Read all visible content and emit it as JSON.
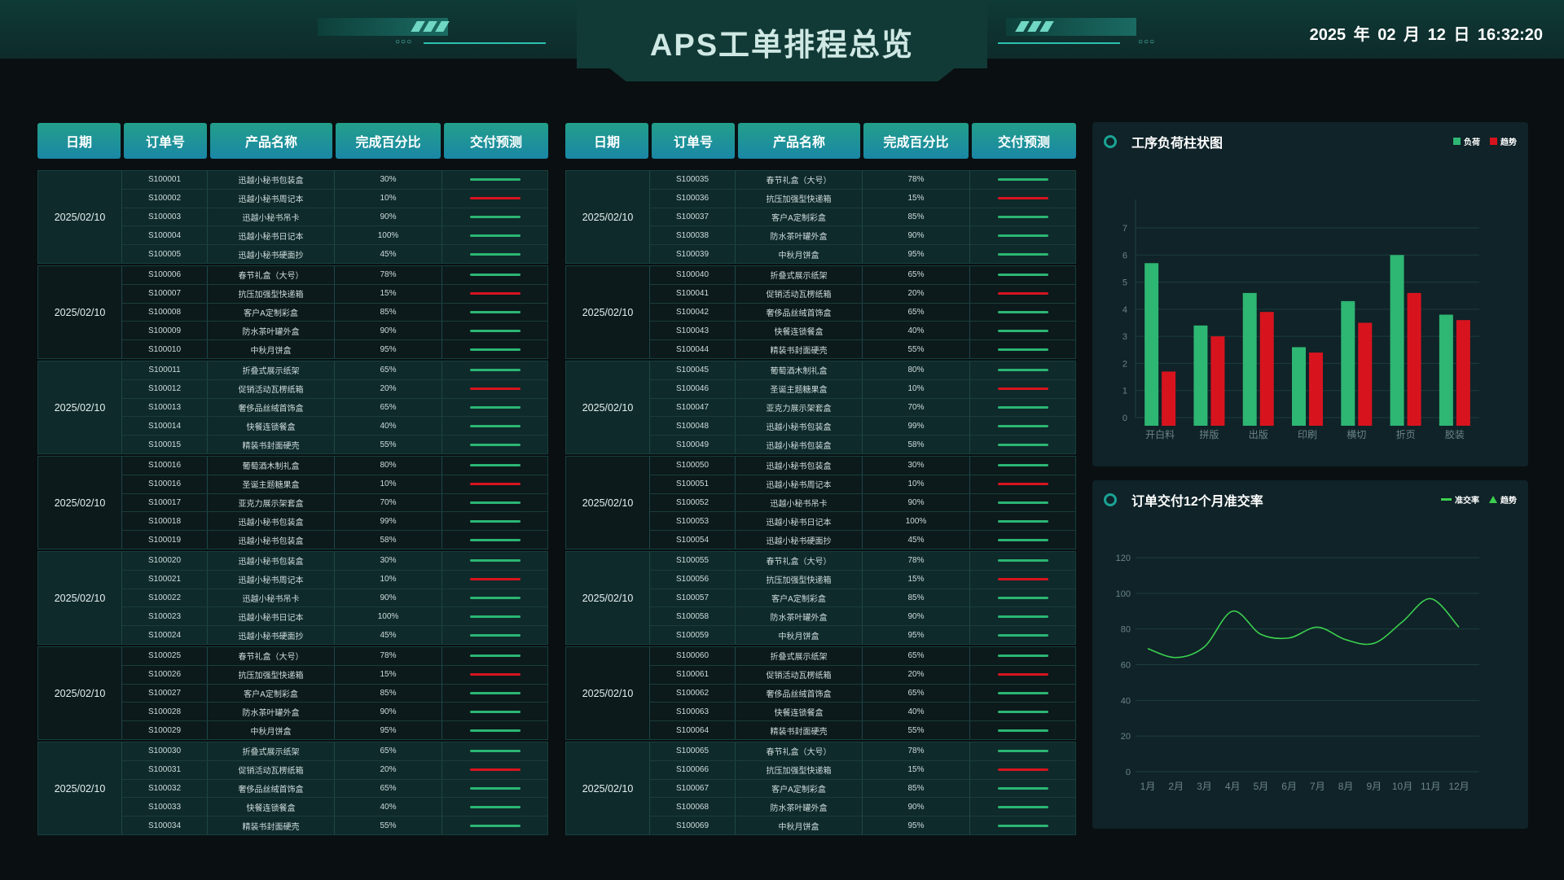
{
  "header": {
    "title": "APS工单排程总览",
    "datetime": "2025 年 02 月 12 日   16:32:20",
    "dots": "○○○"
  },
  "table_headers": [
    "日期",
    "订单号",
    "产品名称",
    "完成百分比",
    "交付预测"
  ],
  "colors": {
    "on_track": "#2bb673",
    "at_risk": "#d7141e",
    "accent": "#1aa394"
  },
  "left_table": [
    {
      "date": "2025/02/10",
      "rows": [
        [
          "S100001",
          "迅越小秘书包装盒",
          "30%",
          "on_track"
        ],
        [
          "S100002",
          "迅越小秘书周记本",
          "10%",
          "at_risk"
        ],
        [
          "S100003",
          "迅越小秘书吊卡",
          "90%",
          "on_track"
        ],
        [
          "S100004",
          "迅越小秘书日记本",
          "100%",
          "on_track"
        ],
        [
          "S100005",
          "迅越小秘书硬面抄",
          "45%",
          "on_track"
        ]
      ]
    },
    {
      "date": "2025/02/10",
      "rows": [
        [
          "S100006",
          "春节礼盒（大号）",
          "78%",
          "on_track"
        ],
        [
          "S100007",
          "抗压加强型快递箱",
          "15%",
          "at_risk"
        ],
        [
          "S100008",
          "客户A定制彩盒",
          "85%",
          "on_track"
        ],
        [
          "S100009",
          "防水茶叶罐外盒",
          "90%",
          "on_track"
        ],
        [
          "S100010",
          "中秋月饼盒",
          "95%",
          "on_track"
        ]
      ]
    },
    {
      "date": "2025/02/10",
      "rows": [
        [
          "S100011",
          "折叠式展示纸架",
          "65%",
          "on_track"
        ],
        [
          "S100012",
          "促销活动瓦楞纸箱",
          "20%",
          "at_risk"
        ],
        [
          "S100013",
          "奢侈品丝绒首饰盒",
          "65%",
          "on_track"
        ],
        [
          "S100014",
          "快餐连锁餐盒",
          "40%",
          "on_track"
        ],
        [
          "S100015",
          "精装书封面硬壳",
          "55%",
          "on_track"
        ]
      ]
    },
    {
      "date": "2025/02/10",
      "rows": [
        [
          "S100016",
          "葡萄酒木制礼盒",
          "80%",
          "on_track"
        ],
        [
          "S100016",
          "圣诞主题糖果盒",
          "10%",
          "at_risk"
        ],
        [
          "S100017",
          "亚克力展示架套盒",
          "70%",
          "on_track"
        ],
        [
          "S100018",
          "迅越小秘书包装盒",
          "99%",
          "on_track"
        ],
        [
          "S100019",
          "迅越小秘书包装盒",
          "58%",
          "on_track"
        ]
      ]
    },
    {
      "date": "2025/02/10",
      "rows": [
        [
          "S100020",
          "迅越小秘书包装盒",
          "30%",
          "on_track"
        ],
        [
          "S100021",
          "迅越小秘书周记本",
          "10%",
          "at_risk"
        ],
        [
          "S100022",
          "迅越小秘书吊卡",
          "90%",
          "on_track"
        ],
        [
          "S100023",
          "迅越小秘书日记本",
          "100%",
          "on_track"
        ],
        [
          "S100024",
          "迅越小秘书硬面抄",
          "45%",
          "on_track"
        ]
      ]
    },
    {
      "date": "2025/02/10",
      "rows": [
        [
          "S100025",
          "春节礼盒（大号）",
          "78%",
          "on_track"
        ],
        [
          "S100026",
          "抗压加强型快递箱",
          "15%",
          "at_risk"
        ],
        [
          "S100027",
          "客户A定制彩盒",
          "85%",
          "on_track"
        ],
        [
          "S100028",
          "防水茶叶罐外盒",
          "90%",
          "on_track"
        ],
        [
          "S100029",
          "中秋月饼盒",
          "95%",
          "on_track"
        ]
      ]
    },
    {
      "date": "2025/02/10",
      "rows": [
        [
          "S100030",
          "折叠式展示纸架",
          "65%",
          "on_track"
        ],
        [
          "S100031",
          "促销活动瓦楞纸箱",
          "20%",
          "at_risk"
        ],
        [
          "S100032",
          "奢侈品丝绒首饰盒",
          "65%",
          "on_track"
        ],
        [
          "S100033",
          "快餐连锁餐盒",
          "40%",
          "on_track"
        ],
        [
          "S100034",
          "精装书封面硬壳",
          "55%",
          "on_track"
        ]
      ]
    }
  ],
  "right_table": [
    {
      "date": "2025/02/10",
      "rows": [
        [
          "S100035",
          "春节礼盒（大号）",
          "78%",
          "on_track"
        ],
        [
          "S100036",
          "抗压加强型快递箱",
          "15%",
          "at_risk"
        ],
        [
          "S100037",
          "客户A定制彩盒",
          "85%",
          "on_track"
        ],
        [
          "S100038",
          "防水茶叶罐外盒",
          "90%",
          "on_track"
        ],
        [
          "S100039",
          "中秋月饼盒",
          "95%",
          "on_track"
        ]
      ]
    },
    {
      "date": "2025/02/10",
      "rows": [
        [
          "S100040",
          "折叠式展示纸架",
          "65%",
          "on_track"
        ],
        [
          "S100041",
          "促销活动瓦楞纸箱",
          "20%",
          "at_risk"
        ],
        [
          "S100042",
          "奢侈品丝绒首饰盒",
          "65%",
          "on_track"
        ],
        [
          "S100043",
          "快餐连锁餐盒",
          "40%",
          "on_track"
        ],
        [
          "S100044",
          "精装书封面硬壳",
          "55%",
          "on_track"
        ]
      ]
    },
    {
      "date": "2025/02/10",
      "rows": [
        [
          "S100045",
          "葡萄酒木制礼盒",
          "80%",
          "on_track"
        ],
        [
          "S100046",
          "圣诞主题糖果盒",
          "10%",
          "at_risk"
        ],
        [
          "S100047",
          "亚克力展示架套盒",
          "70%",
          "on_track"
        ],
        [
          "S100048",
          "迅越小秘书包装盒",
          "99%",
          "on_track"
        ],
        [
          "S100049",
          "迅越小秘书包装盒",
          "58%",
          "on_track"
        ]
      ]
    },
    {
      "date": "2025/02/10",
      "rows": [
        [
          "S100050",
          "迅越小秘书包装盒",
          "30%",
          "on_track"
        ],
        [
          "S100051",
          "迅越小秘书周记本",
          "10%",
          "at_risk"
        ],
        [
          "S100052",
          "迅越小秘书吊卡",
          "90%",
          "on_track"
        ],
        [
          "S100053",
          "迅越小秘书日记本",
          "100%",
          "on_track"
        ],
        [
          "S100054",
          "迅越小秘书硬面抄",
          "45%",
          "on_track"
        ]
      ]
    },
    {
      "date": "2025/02/10",
      "rows": [
        [
          "S100055",
          "春节礼盒（大号）",
          "78%",
          "on_track"
        ],
        [
          "S100056",
          "抗压加强型快递箱",
          "15%",
          "at_risk"
        ],
        [
          "S100057",
          "客户A定制彩盒",
          "85%",
          "on_track"
        ],
        [
          "S100058",
          "防水茶叶罐外盒",
          "90%",
          "on_track"
        ],
        [
          "S100059",
          "中秋月饼盒",
          "95%",
          "on_track"
        ]
      ]
    },
    {
      "date": "2025/02/10",
      "rows": [
        [
          "S100060",
          "折叠式展示纸架",
          "65%",
          "on_track"
        ],
        [
          "S100061",
          "促销活动瓦楞纸箱",
          "20%",
          "at_risk"
        ],
        [
          "S100062",
          "奢侈品丝绒首饰盒",
          "65%",
          "on_track"
        ],
        [
          "S100063",
          "快餐连锁餐盒",
          "40%",
          "on_track"
        ],
        [
          "S100064",
          "精装书封面硬壳",
          "55%",
          "on_track"
        ]
      ]
    },
    {
      "date": "2025/02/10",
      "rows": [
        [
          "S100065",
          "春节礼盒（大号）",
          "78%",
          "on_track"
        ],
        [
          "S100066",
          "抗压加强型快递箱",
          "15%",
          "at_risk"
        ],
        [
          "S100067",
          "客户A定制彩盒",
          "85%",
          "on_track"
        ],
        [
          "S100068",
          "防水茶叶罐外盒",
          "90%",
          "on_track"
        ],
        [
          "S100069",
          "中秋月饼盒",
          "95%",
          "on_track"
        ]
      ]
    }
  ],
  "chart_data": [
    {
      "type": "bar",
      "title": "工序负荷柱状图",
      "categories": [
        "开白料",
        "拼版",
        "出版",
        "印刷",
        "横切",
        "折页",
        "胶装"
      ],
      "series": [
        {
          "name": "负荷",
          "color": "#2eb673",
          "values": [
            5.7,
            3.4,
            4.6,
            2.6,
            4.3,
            6.0,
            3.8
          ]
        },
        {
          "name": "趋势",
          "color": "#d7141e",
          "values": [
            1.7,
            3.0,
            3.9,
            2.4,
            3.5,
            4.6,
            3.6
          ]
        }
      ],
      "ylim": [
        0,
        7
      ],
      "yticks": [
        0,
        1,
        2,
        3,
        4,
        5,
        6,
        7
      ],
      "grid": true,
      "legend": "top-right"
    },
    {
      "type": "line",
      "title": "订单交付12个月准交率",
      "categories": [
        "1月",
        "2月",
        "3月",
        "4月",
        "5月",
        "6月",
        "7月",
        "8月",
        "9月",
        "10月",
        "11月",
        "12月"
      ],
      "series": [
        {
          "name": "准交率",
          "color": "#3ccf4e",
          "values": [
            69,
            64,
            70,
            90,
            77,
            75,
            81,
            74,
            72,
            84,
            97,
            81
          ]
        }
      ],
      "legend_items": [
        {
          "name": "准交率",
          "marker": "line"
        },
        {
          "name": "趋势",
          "marker": "triangle"
        }
      ],
      "ylim": [
        0,
        120
      ],
      "yticks": [
        0,
        20,
        40,
        60,
        80,
        100,
        120
      ],
      "grid": true,
      "legend": "top-right",
      "smooth": true
    }
  ]
}
